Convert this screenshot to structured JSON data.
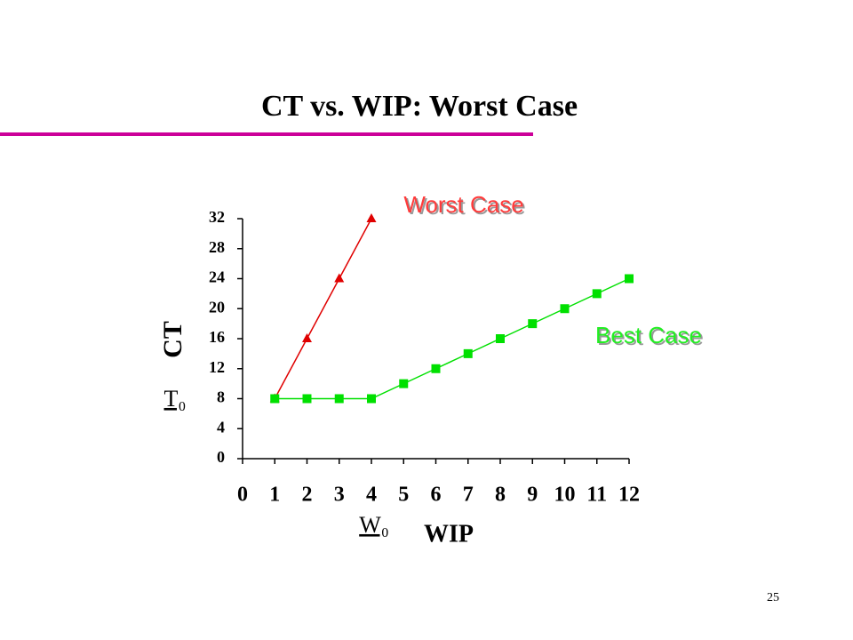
{
  "chart_data": {
    "type": "line",
    "title": "CT vs. WIP: Worst Case",
    "x_label": "WIP",
    "y_label": "CT",
    "x": [
      1,
      2,
      3,
      4,
      5,
      6,
      7,
      8,
      9,
      10,
      11,
      12
    ],
    "series": [
      {
        "name": "Worst Case",
        "color": "#e00000",
        "label_color": "#ff3b3b",
        "marker": "triangle",
        "values": [
          8,
          16,
          24,
          32,
          null,
          null,
          null,
          null,
          null,
          null,
          null,
          null
        ]
      },
      {
        "name": "Best Case",
        "color": "#00e000",
        "label_color": "#22ee22",
        "marker": "square",
        "values": [
          8,
          8,
          8,
          8,
          10,
          12,
          14,
          16,
          18,
          20,
          22,
          24
        ]
      }
    ],
    "xlim": [
      0,
      12
    ],
    "xticks": [
      0,
      1,
      2,
      3,
      4,
      5,
      6,
      7,
      8,
      9,
      10,
      11,
      12
    ],
    "ylim": [
      0,
      32
    ],
    "yticks": [
      0,
      4,
      8,
      12,
      16,
      20,
      24,
      28,
      32
    ],
    "grid": false,
    "annotations": [
      "T₀",
      "W₀"
    ]
  },
  "page_number": 25
}
